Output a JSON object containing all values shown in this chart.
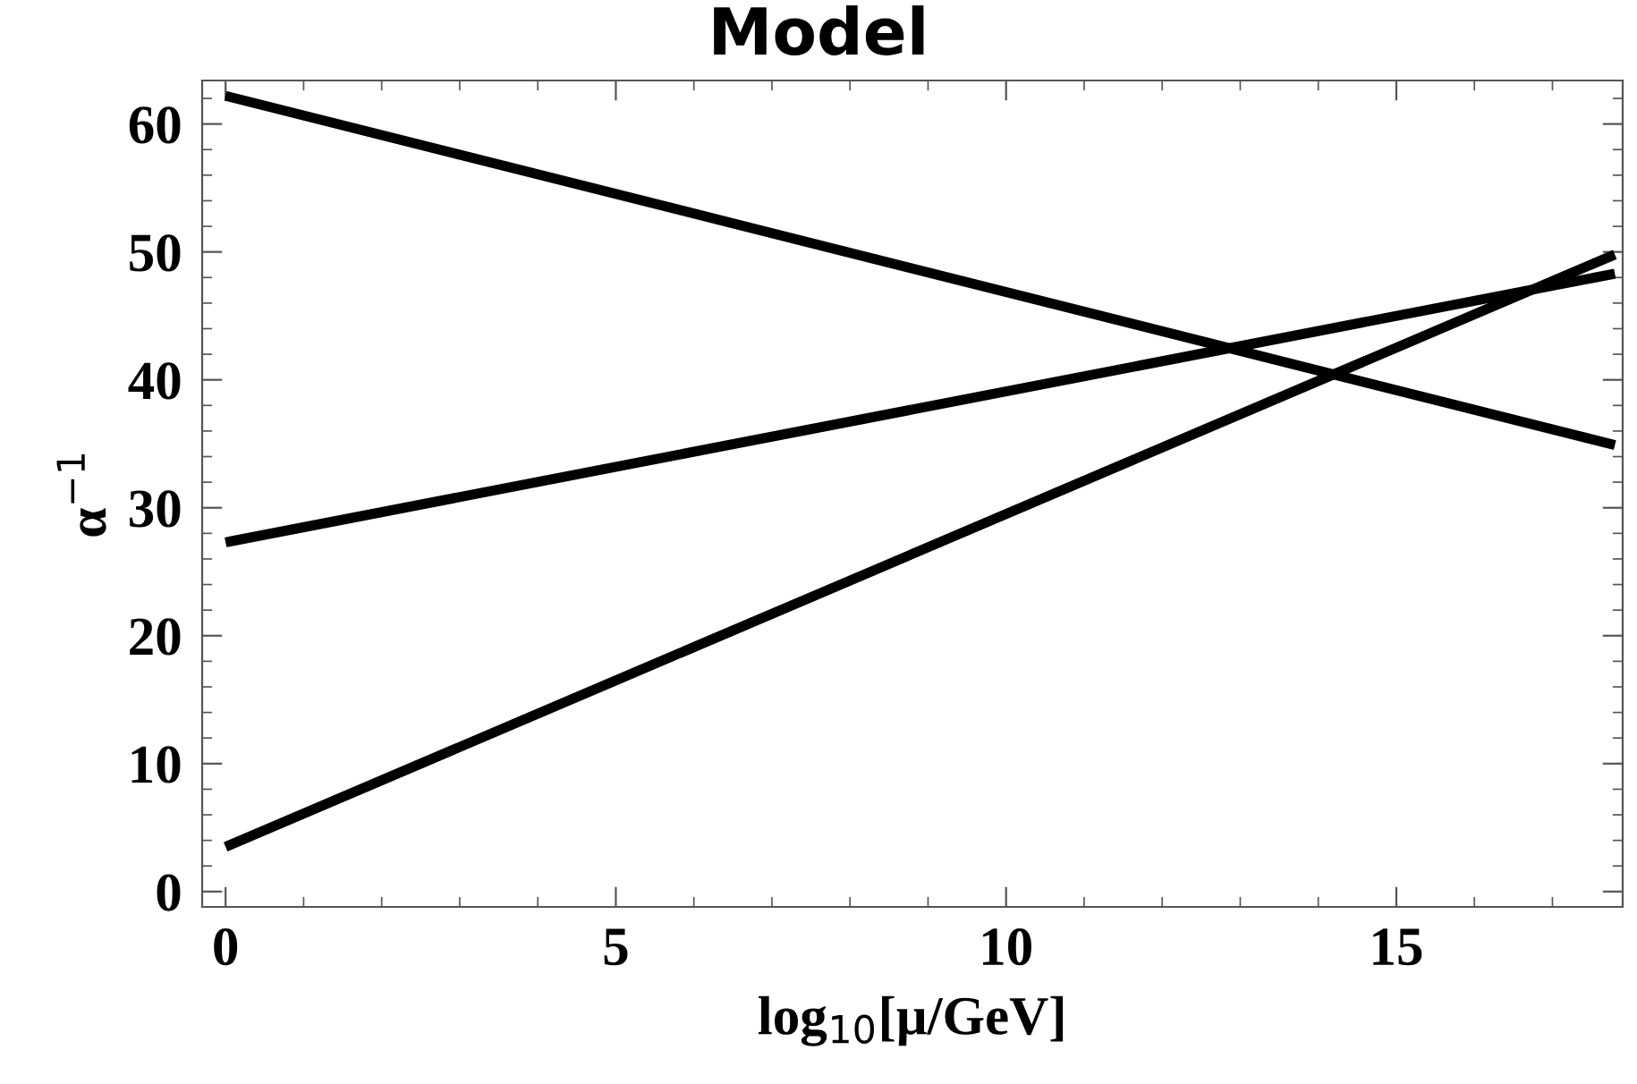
{
  "chart_data": {
    "type": "line",
    "title": "Model",
    "xlabel": "log$_{10}$[μ/GeV]",
    "ylabel": "α$^{−1}$",
    "x": [
      0,
      17.8
    ],
    "series": [
      {
        "color": "#000000",
        "values": [
          62.2,
          34.9
        ]
      },
      {
        "color": "#000000",
        "values": [
          27.3,
          48.3
        ]
      },
      {
        "color": "#000000",
        "values": [
          3.5,
          49.8
        ]
      }
    ],
    "xlim": [
      -0.3,
      17.9
    ],
    "ylim": [
      -1.2,
      63.4
    ],
    "xticks": [
      0,
      5,
      10,
      15
    ],
    "yticks": [
      0,
      10,
      20,
      30,
      40,
      50,
      60
    ],
    "grid": false,
    "legend": false,
    "marker": "none",
    "line_style": "solid"
  }
}
